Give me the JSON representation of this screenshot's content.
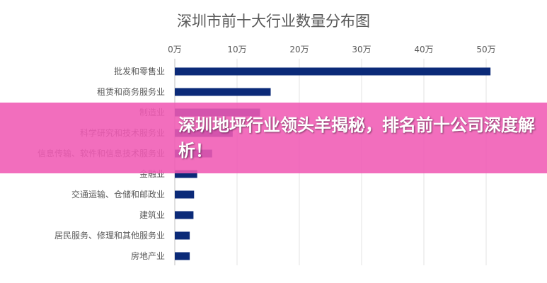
{
  "chart_data": {
    "type": "bar",
    "orientation": "horizontal",
    "title": "深圳市前十大行业数量分布图",
    "categories": [
      "批发和零售业",
      "租赁和商务服务业",
      "制造业",
      "科学研究和技术服务业",
      "信息传输、软件和信息技术服务业",
      "金融业",
      "交通运输、仓储和邮政业",
      "建筑业",
      "居民服务、修理和其他服务业",
      "房地产业"
    ],
    "values": [
      50.7,
      15.4,
      13.7,
      9.3,
      6.0,
      3.6,
      3.1,
      3.0,
      2.4,
      2.4
    ],
    "unit": "万",
    "xlim": [
      0,
      50
    ],
    "xticks": [
      "0万",
      "10万",
      "20万",
      "30万",
      "40万",
      "50万"
    ],
    "axis_position": "top",
    "grid": true,
    "bar_color": "#0b2a78"
  },
  "banner": {
    "text": "深圳地坪行业领头羊揭秘，排名前十公司深度解析！",
    "color": "#f05ab4"
  }
}
